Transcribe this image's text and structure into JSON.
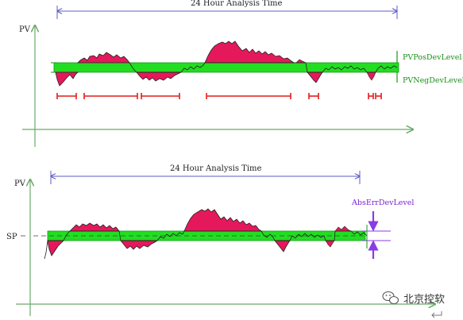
{
  "top_diagram": {
    "title": "24 Hour Analysis Time",
    "y_axis_label": "PV",
    "upper_band_label": "PVPosDevLevel",
    "lower_band_label": "PVNegDevLevel"
  },
  "bottom_diagram": {
    "title": "24 Hour Analysis Time",
    "y_axis_label": "PV",
    "setpoint_label": "SP",
    "error_band_label": "AbsErrDevLevel"
  },
  "watermark": {
    "text": "北京控软"
  },
  "colors": {
    "band": "#22dd22",
    "fill": "#e6185c",
    "trace": "#222222",
    "red_marks": "#e21c1c",
    "axis_arrow": "#6aaa6a",
    "time_arrow": "#5c5cc8",
    "abs_err_arrow": "#8a3ce6"
  }
}
